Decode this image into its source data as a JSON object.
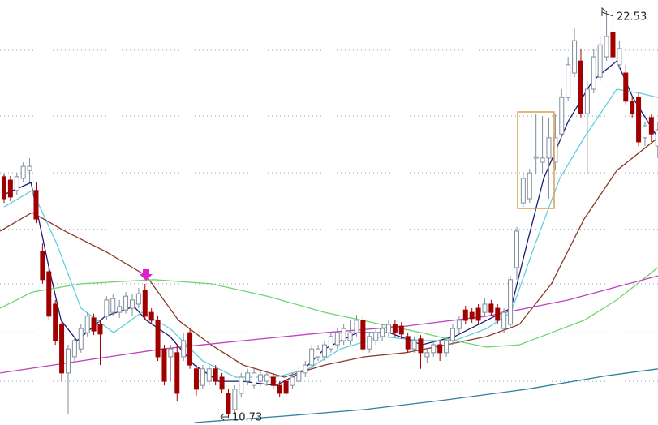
{
  "chart_data": {
    "type": "candlestick",
    "xlim": [
      -0.63,
      102.03
    ],
    "ylim": [
      10.52,
      22.86
    ],
    "ygrid": [
      21.4,
      19.49,
      17.84,
      16.2,
      14.62,
      13.2,
      11.79
    ],
    "grid_color": "#8fa6c0",
    "up_color": "#7f8e9c",
    "down_color": "#a00000",
    "high_label": 22.53,
    "low_label": 10.73,
    "ohlc": [
      [
        17.73,
        17.8,
        16.97,
        17.09
      ],
      [
        17.63,
        17.75,
        17.02,
        17.14
      ],
      [
        17.33,
        17.84,
        17.21,
        17.73
      ],
      [
        17.68,
        18.15,
        17.56,
        18.03
      ],
      [
        17.91,
        18.27,
        17.56,
        18.03
      ],
      [
        17.33,
        17.56,
        16.38,
        16.5
      ],
      [
        15.56,
        15.79,
        14.62,
        14.74
      ],
      [
        14.97,
        15.09,
        13.56,
        13.68
      ],
      [
        14.03,
        14.15,
        12.85,
        12.97
      ],
      [
        13.44,
        13.56,
        11.79,
        12.03
      ],
      [
        12.03,
        12.85,
        10.85,
        12.73
      ],
      [
        12.5,
        13.09,
        12.38,
        12.97
      ],
      [
        12.73,
        13.44,
        12.62,
        13.32
      ],
      [
        13.2,
        13.79,
        13.09,
        13.68
      ],
      [
        13.63,
        13.75,
        13.13,
        13.25
      ],
      [
        13.44,
        13.56,
        12.26,
        13.16
      ],
      [
        13.68,
        14.26,
        13.56,
        14.15
      ],
      [
        13.79,
        14.31,
        13.68,
        14.19
      ],
      [
        13.79,
        14.15,
        13.63,
        13.96
      ],
      [
        13.86,
        14.38,
        13.75,
        14.26
      ],
      [
        13.91,
        14.33,
        13.68,
        14.15
      ],
      [
        14.03,
        14.5,
        13.91,
        14.33
      ],
      [
        14.43,
        14.62,
        13.56,
        13.68
      ],
      [
        13.79,
        13.91,
        13.44,
        13.56
      ],
      [
        13.56,
        13.68,
        12.38,
        12.5
      ],
      [
        12.73,
        12.85,
        11.67,
        11.79
      ],
      [
        12.5,
        12.85,
        11.79,
        12.73
      ],
      [
        12.62,
        12.85,
        11.2,
        11.44
      ],
      [
        12.5,
        13.2,
        12.38,
        12.97
      ],
      [
        13.2,
        13.32,
        12.15,
        12.26
      ],
      [
        12.15,
        12.26,
        11.37,
        11.56
      ],
      [
        11.67,
        12.26,
        11.56,
        12.15
      ],
      [
        11.79,
        12.26,
        11.67,
        12.15
      ],
      [
        12.15,
        12.26,
        11.67,
        11.79
      ],
      [
        11.91,
        12.03,
        11.44,
        11.56
      ],
      [
        11.44,
        11.56,
        10.73,
        10.85
      ],
      [
        10.97,
        11.67,
        10.85,
        11.56
      ],
      [
        11.44,
        12.03,
        11.32,
        11.91
      ],
      [
        11.79,
        12.15,
        11.67,
        12.03
      ],
      [
        11.67,
        12.15,
        11.56,
        12.03
      ],
      [
        11.79,
        12.1,
        11.65,
        11.98
      ],
      [
        11.79,
        12.1,
        11.65,
        11.98
      ],
      [
        11.91,
        12.03,
        11.56,
        11.67
      ],
      [
        11.67,
        11.79,
        11.32,
        11.44
      ],
      [
        11.79,
        11.91,
        11.32,
        11.44
      ],
      [
        11.67,
        12.03,
        11.56,
        11.91
      ],
      [
        11.79,
        12.22,
        11.67,
        12.07
      ],
      [
        12.03,
        12.38,
        11.91,
        12.26
      ],
      [
        12.26,
        12.85,
        12.15,
        12.73
      ],
      [
        12.5,
        12.85,
        12.38,
        12.73
      ],
      [
        12.5,
        12.97,
        12.38,
        12.85
      ],
      [
        12.73,
        13.2,
        12.62,
        13.09
      ],
      [
        12.85,
        13.32,
        12.73,
        13.2
      ],
      [
        12.97,
        13.44,
        12.85,
        13.32
      ],
      [
        12.97,
        13.56,
        12.85,
        13.2
      ],
      [
        13.2,
        13.72,
        13.09,
        13.56
      ],
      [
        13.56,
        13.68,
        12.62,
        12.73
      ],
      [
        12.73,
        13.2,
        12.62,
        13.09
      ],
      [
        12.97,
        13.32,
        12.85,
        13.2
      ],
      [
        13.09,
        13.44,
        12.97,
        13.32
      ],
      [
        13.2,
        13.56,
        13.09,
        13.44
      ],
      [
        13.44,
        13.56,
        13.09,
        13.2
      ],
      [
        13.39,
        13.51,
        13.02,
        13.16
      ],
      [
        13.09,
        13.2,
        12.62,
        12.73
      ],
      [
        12.73,
        13.09,
        12.62,
        12.97
      ],
      [
        13.02,
        13.13,
        12.15,
        12.62
      ],
      [
        12.5,
        12.73,
        12.31,
        12.62
      ],
      [
        12.62,
        12.97,
        12.5,
        12.85
      ],
      [
        12.85,
        12.97,
        12.38,
        12.62
      ],
      [
        12.62,
        13.09,
        12.5,
        12.97
      ],
      [
        12.97,
        13.44,
        12.85,
        13.32
      ],
      [
        13.32,
        13.68,
        13.2,
        13.56
      ],
      [
        13.86,
        13.98,
        13.44,
        13.56
      ],
      [
        13.79,
        13.91,
        13.49,
        13.61
      ],
      [
        13.91,
        14.03,
        13.44,
        13.56
      ],
      [
        13.79,
        14.19,
        13.68,
        14.03
      ],
      [
        14.03,
        14.15,
        13.68,
        13.79
      ],
      [
        13.91,
        14.03,
        13.44,
        13.56
      ],
      [
        13.32,
        13.91,
        13.2,
        13.79
      ],
      [
        13.44,
        14.85,
        13.32,
        14.74
      ],
      [
        15.09,
        16.27,
        14.74,
        16.15
      ],
      [
        16.97,
        17.8,
        16.85,
        17.68
      ],
      [
        17.09,
        17.96,
        16.97,
        17.84
      ],
      [
        18.27,
        19.56,
        17.8,
        18.31
      ],
      [
        18.15,
        19.49,
        17.8,
        18.27
      ],
      [
        18.27,
        19.45,
        17.09,
        18.86
      ],
      [
        18.15,
        19.56,
        17.91,
        18.86
      ],
      [
        18.97,
        20.27,
        18.86,
        20.03
      ],
      [
        20.03,
        21.21,
        19.92,
        20.98
      ],
      [
        20.74,
        22.04,
        20.62,
        21.68
      ],
      [
        21.09,
        21.45,
        19.45,
        19.56
      ],
      [
        19.56,
        20.51,
        17.8,
        20.27
      ],
      [
        20.27,
        21.45,
        20.15,
        21.21
      ],
      [
        20.62,
        21.8,
        20.5,
        21.56
      ],
      [
        21.21,
        22.53,
        21.09,
        21.8
      ],
      [
        21.92,
        22.39,
        21.09,
        21.21
      ],
      [
        20.98,
        21.68,
        20.86,
        21.45
      ],
      [
        20.74,
        20.98,
        19.8,
        19.92
      ],
      [
        19.92,
        20.03,
        19.45,
        19.56
      ],
      [
        20.03,
        20.15,
        18.62,
        18.74
      ],
      [
        18.86,
        19.33,
        18.62,
        19.21
      ],
      [
        19.45,
        19.56,
        18.74,
        18.97
      ],
      [
        18.62,
        19.33,
        18.27,
        19.09
      ]
    ],
    "lines": [
      {
        "color": "#1c1c78",
        "x": [
          0,
          4.2,
          7,
          8.9,
          11.4,
          15.8,
          20.3,
          22.2,
          25.9,
          29.7,
          33.5,
          37.3,
          42.4,
          46.2,
          50,
          55.1,
          60.1,
          65.2,
          70.3,
          75.3,
          79.1,
          81.6,
          84.2,
          88,
          91.8,
          95.6,
          98.1,
          102
        ],
        "values": [
          17.21,
          17.56,
          15.09,
          13.56,
          12.97,
          13.68,
          13.96,
          13.56,
          13.09,
          12.26,
          11.79,
          11.79,
          11.67,
          12.03,
          12.73,
          13.2,
          13.2,
          12.85,
          13.09,
          13.56,
          13.91,
          15.79,
          17.68,
          19.33,
          20.51,
          21.09,
          20.03,
          18.86
        ]
      },
      {
        "color": "#5fd0dd",
        "x": [
          0,
          4.4,
          8.2,
          12,
          17.1,
          21.5,
          25.9,
          31,
          36.1,
          42.4,
          47.5,
          52.5,
          58.9,
          65.2,
          70.3,
          75.3,
          79.1,
          82.9,
          86.7,
          90.5,
          95.6,
          99.4,
          102
        ],
        "values": [
          16.85,
          17.33,
          15.79,
          13.91,
          13.2,
          13.79,
          13.32,
          12.38,
          11.91,
          11.91,
          12.15,
          12.73,
          13.09,
          12.97,
          12.97,
          13.32,
          13.79,
          15.79,
          17.68,
          18.86,
          20.27,
          20.15,
          20.03
        ]
      },
      {
        "color": "#8b3a2a",
        "x": [
          -0.6,
          4.4,
          9.5,
          15.8,
          22.2,
          27.2,
          32.3,
          37.3,
          43.7,
          50,
          56.3,
          62.7,
          69,
          75.3,
          80.4,
          85.4,
          90.5,
          95.6,
          102
        ],
        "values": [
          16.15,
          16.69,
          16.15,
          15.56,
          14.85,
          13.56,
          12.85,
          12.26,
          11.91,
          12.26,
          12.5,
          12.62,
          12.85,
          13.09,
          13.44,
          14.62,
          16.5,
          17.91,
          18.86
        ]
      },
      {
        "color": "#6fd46f",
        "x": [
          -0.6,
          4.4,
          12,
          23.4,
          32.3,
          41.1,
          50,
          58.9,
          65.2,
          70.3,
          75.3,
          80.4,
          85.4,
          90.5,
          95.6,
          102
        ],
        "values": [
          13.91,
          14.38,
          14.62,
          14.74,
          14.62,
          14.26,
          13.79,
          13.44,
          13.2,
          12.97,
          12.78,
          12.85,
          13.2,
          13.56,
          14.15,
          15.09
        ]
      },
      {
        "color": "#c040c0",
        "x": [
          -0.6,
          12,
          24.7,
          37.3,
          50,
          62.7,
          75.3,
          88,
          102
        ],
        "values": [
          12.03,
          12.38,
          12.73,
          12.97,
          13.2,
          13.39,
          13.68,
          14.15,
          14.85
        ]
      },
      {
        "color": "#2e7fa0",
        "x": [
          29.7,
          43.7,
          56.3,
          69,
          81.6,
          94.3,
          102
        ],
        "values": [
          10.59,
          10.78,
          10.97,
          11.25,
          11.56,
          11.96,
          12.15
        ]
      }
    ]
  }
}
